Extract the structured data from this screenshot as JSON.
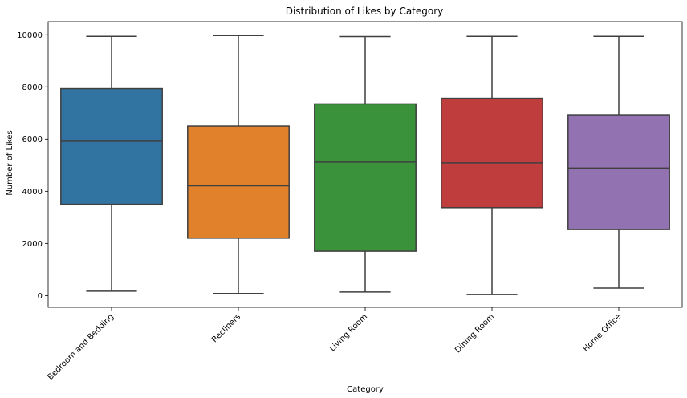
{
  "chart_data": {
    "type": "box",
    "title": "Distribution of Likes by Category",
    "xlabel": "Category",
    "ylabel": "Number of Likes",
    "ylim": [
      -450,
      10500
    ],
    "yticks": [
      0,
      2000,
      4000,
      6000,
      8000,
      10000
    ],
    "grid": false,
    "categories": [
      "Bedroom and Bedding",
      "Recliners",
      "Living Room",
      "Dining Room",
      "Home Office"
    ],
    "colors": [
      "#3274a1",
      "#e1812c",
      "#3a923a",
      "#c03d3e",
      "#9372b2"
    ],
    "boxes": [
      {
        "category": "Bedroom and Bedding",
        "whisker_low": 170,
        "q1": 3500,
        "median": 5920,
        "q3": 7930,
        "whisker_high": 9940
      },
      {
        "category": "Recliners",
        "whisker_low": 80,
        "q1": 2200,
        "median": 4210,
        "q3": 6500,
        "whisker_high": 9970
      },
      {
        "category": "Living Room",
        "whisker_low": 140,
        "q1": 1700,
        "median": 5120,
        "q3": 7350,
        "whisker_high": 9930
      },
      {
        "category": "Dining Room",
        "whisker_low": 40,
        "q1": 3370,
        "median": 5090,
        "q3": 7560,
        "whisker_high": 9940
      },
      {
        "category": "Home Office",
        "whisker_low": 290,
        "q1": 2530,
        "median": 4890,
        "q3": 6930,
        "whisker_high": 9940
      }
    ]
  }
}
